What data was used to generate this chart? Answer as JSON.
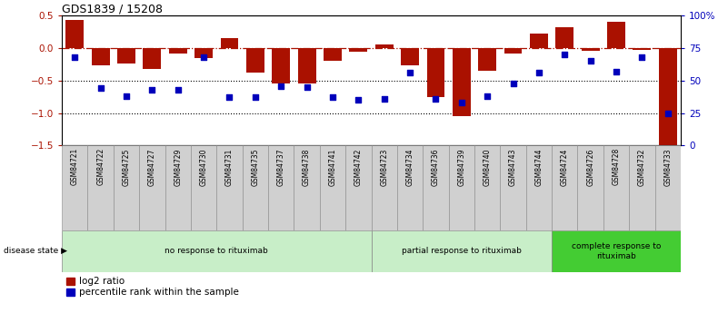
{
  "title": "GDS1839 / 15208",
  "samples": [
    "GSM84721",
    "GSM84722",
    "GSM84725",
    "GSM84727",
    "GSM84729",
    "GSM84730",
    "GSM84731",
    "GSM84735",
    "GSM84737",
    "GSM84738",
    "GSM84741",
    "GSM84742",
    "GSM84723",
    "GSM84734",
    "GSM84736",
    "GSM84739",
    "GSM84740",
    "GSM84743",
    "GSM84744",
    "GSM84724",
    "GSM84726",
    "GSM84728",
    "GSM84732",
    "GSM84733"
  ],
  "log2_ratio": [
    0.44,
    -0.26,
    -0.24,
    -0.32,
    -0.08,
    -0.16,
    0.15,
    -0.38,
    -0.55,
    -0.54,
    -0.19,
    -0.06,
    0.06,
    -0.26,
    -0.76,
    -1.05,
    -0.35,
    -0.08,
    0.23,
    0.32,
    -0.04,
    0.4,
    -0.03,
    -1.5
  ],
  "percentile_rank": [
    68,
    44,
    38,
    43,
    43,
    68,
    37,
    37,
    46,
    45,
    37,
    35,
    36,
    56,
    36,
    33,
    38,
    48,
    56,
    70,
    65,
    57,
    68,
    25
  ],
  "group_labels": [
    "no response to rituximab",
    "partial response to rituximab",
    "complete response to\nrituximab"
  ],
  "group_sizes": [
    12,
    7,
    5
  ],
  "group_colors_light": [
    "#d4f0d4",
    "#d4f0d4",
    "#66dd55"
  ],
  "group_border_colors": [
    "#888888",
    "#888888",
    "#888888"
  ],
  "bar_color": "#aa1100",
  "dot_color": "#0000bb",
  "ylim_left": [
    -1.5,
    0.5
  ],
  "ylim_right": [
    0,
    100
  ],
  "yticks_left": [
    -1.5,
    -1.0,
    -0.5,
    0.0,
    0.5
  ],
  "yticks_right": [
    0,
    25,
    50,
    75,
    100
  ],
  "ytick_labels_right": [
    "0",
    "25",
    "50",
    "75",
    "100%"
  ],
  "hlines_dotted": [
    -0.5,
    -1.0
  ],
  "hline_dashed": 0.0,
  "sample_label_bg": "#d0d0d0",
  "sample_label_border": "#888888"
}
